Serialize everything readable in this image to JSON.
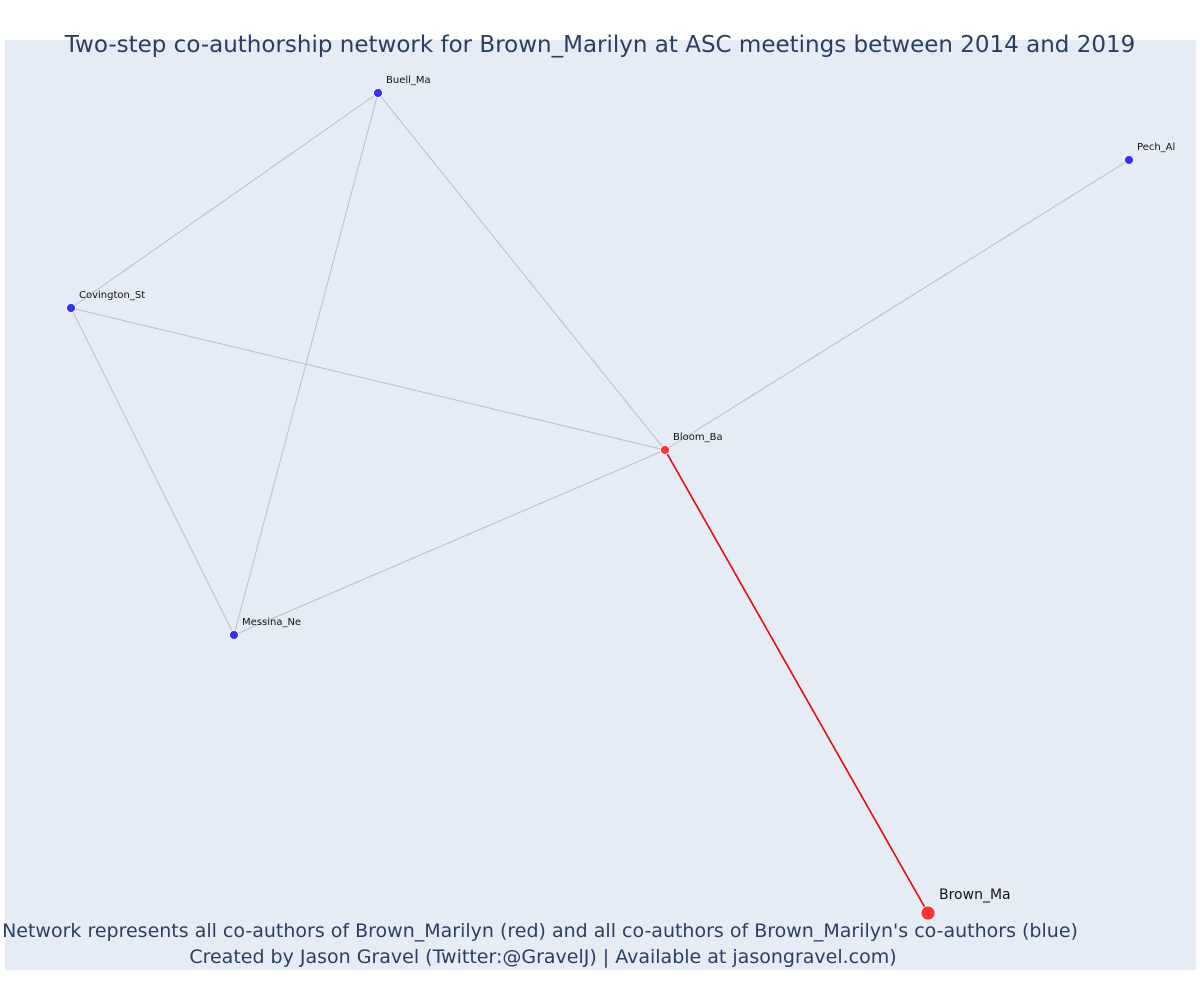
{
  "title": "Two-step co-authorship network for Brown_Marilyn at ASC meetings between 2014 and 2019",
  "caption": {
    "line1": "Network represents all co-authors of Brown_Marilyn (red) and all co-authors of Brown_Marilyn's co-authors (blue)",
    "line2": "Created by Jason Gravel (Twitter:@GravelJ) | Available at jasongravel.com)"
  },
  "colors": {
    "background": "#e5ecf6",
    "focal": "#ff3333",
    "coauthor": "#3333ee",
    "focal_edge": "#ee0000",
    "edge": "#b9bdcc",
    "text": "#2a3f5f"
  },
  "nodes": [
    {
      "id": "Brown_Ma",
      "label": "Brown_Ma",
      "group": "focal"
    },
    {
      "id": "Bloom_Ba",
      "label": "Bloom_Ba",
      "group": "direct"
    },
    {
      "id": "Buell_Ma",
      "label": "Buell_Ma",
      "group": "second"
    },
    {
      "id": "Covington_St",
      "label": "Covington_St",
      "group": "second"
    },
    {
      "id": "Messina_Ne",
      "label": "Messina_Ne",
      "group": "second"
    },
    {
      "id": "Pech_Al",
      "label": "Pech_Al",
      "group": "second"
    }
  ],
  "edges": [
    {
      "source": "Brown_Ma",
      "target": "Bloom_Ba",
      "type": "focal"
    },
    {
      "source": "Bloom_Ba",
      "target": "Buell_Ma",
      "type": "coauthor"
    },
    {
      "source": "Bloom_Ba",
      "target": "Covington_St",
      "type": "coauthor"
    },
    {
      "source": "Bloom_Ba",
      "target": "Messina_Ne",
      "type": "coauthor"
    },
    {
      "source": "Bloom_Ba",
      "target": "Pech_Al",
      "type": "coauthor"
    },
    {
      "source": "Buell_Ma",
      "target": "Covington_St",
      "type": "coauthor"
    },
    {
      "source": "Buell_Ma",
      "target": "Messina_Ne",
      "type": "coauthor"
    },
    {
      "source": "Covington_St",
      "target": "Messina_Ne",
      "type": "coauthor"
    }
  ]
}
